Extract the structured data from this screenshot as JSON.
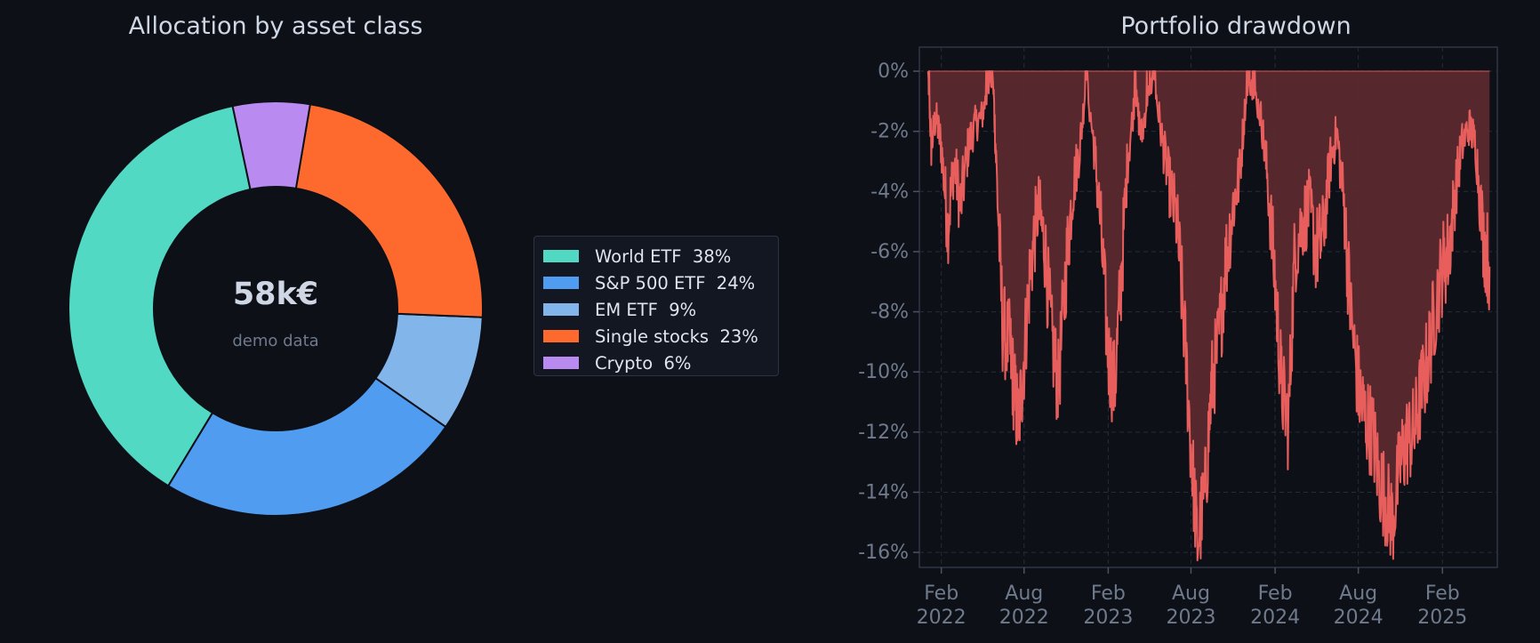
{
  "chart_data": [
    {
      "type": "pie",
      "variant": "donut",
      "title": "Allocation by asset class",
      "center_label": "58k€",
      "center_sublabel": "demo data",
      "legend_position": "right",
      "slices": [
        {
          "label": "World ETF  38%",
          "name": "World ETF",
          "value": 38,
          "color": "#52d9c3"
        },
        {
          "label": "S&P 500 ETF  24%",
          "name": "S&P 500 ETF",
          "value": 24,
          "color": "#4f9cf1"
        },
        {
          "label": "EM ETF  9%",
          "name": "EM ETF",
          "value": 9,
          "color": "#82b6ea"
        },
        {
          "label": "Single stocks  23%",
          "name": "Single stocks",
          "value": 23,
          "color": "#fe6a2d"
        },
        {
          "label": "Crypto  6%",
          "name": "Crypto",
          "value": 6,
          "color": "#b98af0"
        }
      ]
    },
    {
      "type": "area",
      "title": "Portfolio drawdown",
      "x_range": [
        "2021-12-15",
        "2025-06-01"
      ],
      "ylim": [
        -16.5,
        0.8
      ],
      "grid": true,
      "y_ticks": [
        {
          "value": 0,
          "label": "0%"
        },
        {
          "value": -2,
          "label": "-2%"
        },
        {
          "value": -4,
          "label": "-4%"
        },
        {
          "value": -6,
          "label": "-6%"
        },
        {
          "value": -8,
          "label": "-8%"
        },
        {
          "value": -10,
          "label": "-10%"
        },
        {
          "value": -12,
          "label": "-12%"
        },
        {
          "value": -14,
          "label": "-14%"
        },
        {
          "value": -16,
          "label": "-16%"
        }
      ],
      "x_ticks": [
        {
          "date": "2022-02-01",
          "line1": "Feb",
          "line2": "2022"
        },
        {
          "date": "2022-08-01",
          "line1": "Aug",
          "line2": "2022"
        },
        {
          "date": "2023-02-01",
          "line1": "Feb",
          "line2": "2023"
        },
        {
          "date": "2023-08-01",
          "line1": "Aug",
          "line2": "2023"
        },
        {
          "date": "2024-02-01",
          "line1": "Feb",
          "line2": "2024"
        },
        {
          "date": "2024-08-01",
          "line1": "Aug",
          "line2": "2024"
        },
        {
          "date": "2025-02-01",
          "line1": "Feb",
          "line2": "2025"
        }
      ],
      "line_color": "#e85e5c",
      "fill_color": "#5b2a2e",
      "series": [
        {
          "x": [
            "2022-01-03",
            "2022-01-10",
            "2022-01-20",
            "2022-02-01",
            "2022-02-15",
            "2022-03-01",
            "2022-03-15",
            "2022-04-01",
            "2022-04-15",
            "2022-05-01",
            "2022-05-15",
            "2022-05-25",
            "2022-06-01",
            "2022-06-15",
            "2022-07-01",
            "2022-07-10",
            "2022-07-20",
            "2022-08-01",
            "2022-08-15",
            "2022-09-01",
            "2022-09-15",
            "2022-10-01",
            "2022-10-15",
            "2022-11-01",
            "2022-11-15",
            "2022-12-01",
            "2022-12-15",
            "2023-01-01",
            "2023-01-15",
            "2023-02-01",
            "2023-02-15",
            "2023-03-01",
            "2023-03-15",
            "2023-04-01",
            "2023-04-15",
            "2023-05-01",
            "2023-05-15",
            "2023-06-01",
            "2023-06-15",
            "2023-07-01",
            "2023-07-15",
            "2023-08-01",
            "2023-08-15",
            "2023-09-01",
            "2023-09-15",
            "2023-10-01",
            "2023-10-15",
            "2023-11-01",
            "2023-11-15",
            "2023-12-01",
            "2023-12-15",
            "2024-01-01",
            "2024-01-15",
            "2024-02-01",
            "2024-02-15",
            "2024-03-01",
            "2024-03-15",
            "2024-04-01",
            "2024-04-15",
            "2024-05-01",
            "2024-05-15",
            "2024-06-01",
            "2024-06-15",
            "2024-07-01",
            "2024-07-15",
            "2024-08-01",
            "2024-08-15",
            "2024-09-01",
            "2024-09-15",
            "2024-10-01",
            "2024-10-15",
            "2024-11-01",
            "2024-11-15",
            "2024-12-01",
            "2024-12-15",
            "2025-01-01",
            "2025-01-15",
            "2025-02-01",
            "2025-02-15",
            "2025-03-01",
            "2025-03-15",
            "2025-04-01",
            "2025-04-15",
            "2025-05-01",
            "2025-05-15"
          ],
          "y": [
            0,
            -2.5,
            -1.5,
            -2.5,
            -5.2,
            -3.0,
            -4.5,
            -2.5,
            -1.8,
            -1.5,
            -0.5,
            -0.2,
            -3.0,
            -8.5,
            -9.2,
            -10.6,
            -11.8,
            -9.5,
            -6.5,
            -4.5,
            -5.8,
            -9.0,
            -10.5,
            -6.5,
            -4.0,
            -2.5,
            -0.3,
            -2.5,
            -5.0,
            -9.5,
            -10.5,
            -7.0,
            -3.0,
            -0.8,
            -2.2,
            -0.5,
            -0.6,
            -2.5,
            -3.8,
            -5.0,
            -8.0,
            -12.5,
            -15.7,
            -14.0,
            -10.5,
            -9.0,
            -6.5,
            -4.5,
            -3.5,
            -0.5,
            -0.6,
            -1.5,
            -3.5,
            -7.0,
            -10.5,
            -11.8,
            -6.0,
            -5.0,
            -4.5,
            -6.0,
            -5.5,
            -3.0,
            -2.0,
            -4.5,
            -8.0,
            -10.5,
            -11.5,
            -12.0,
            -13.5,
            -14.3,
            -15.0,
            -13.0,
            -12.3,
            -12.0,
            -10.8,
            -9.5,
            -8.0,
            -6.5,
            -6.0,
            -4.0,
            -2.5,
            -1.8,
            -2.5,
            -5.5,
            -6.5
          ]
        }
      ]
    }
  ]
}
